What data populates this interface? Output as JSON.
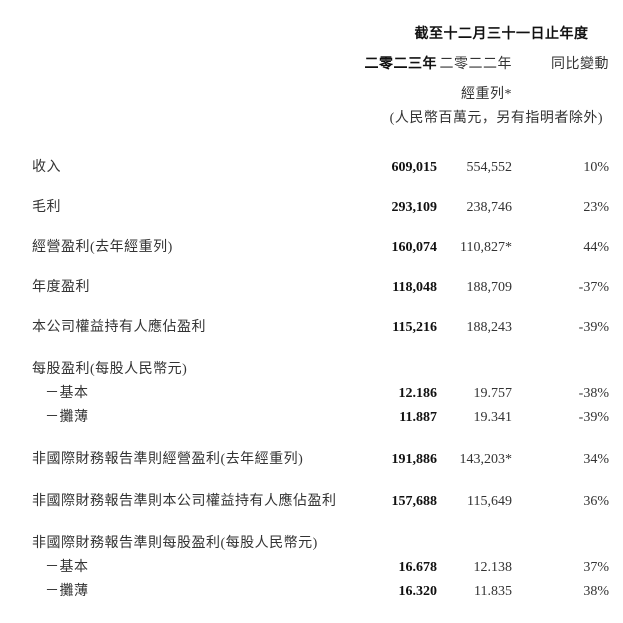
{
  "table": {
    "period_header": "截至十二月三十一日止年度",
    "columns": {
      "y2023": "二零二三年",
      "y2022": "二零二二年",
      "yoy": "同比變動"
    },
    "restated_note": "經重列*",
    "unit_note": "(人民幣百萬元，另有指明者除外)",
    "rows": [
      {
        "type": "item",
        "label": "收入",
        "v2023": "609,015",
        "v2022": "554,552",
        "yoy": "10%"
      },
      {
        "type": "item",
        "label": "毛利",
        "v2023": "293,109",
        "v2022": "238,746",
        "yoy": "23%"
      },
      {
        "type": "item",
        "label": "經營盈利(去年經重列)",
        "v2023": "160,074",
        "v2022": "110,827*",
        "yoy": "44%"
      },
      {
        "type": "item",
        "label": "年度盈利",
        "v2023": "118,048",
        "v2022": "188,709",
        "yoy": "-37%"
      },
      {
        "type": "item",
        "label": "本公司權益持有人應佔盈利",
        "v2023": "115,216",
        "v2022": "188,243",
        "yoy": "-39%"
      },
      {
        "type": "section",
        "label": "每股盈利(每股人民幣元)"
      },
      {
        "type": "sub",
        "label": "－基本",
        "v2023": "12.186",
        "v2022": "19.757",
        "yoy": "-38%"
      },
      {
        "type": "sub",
        "label": "－攤薄",
        "v2023": "11.887",
        "v2022": "19.341",
        "yoy": "-39%"
      },
      {
        "type": "item",
        "gap": "lg",
        "label": "非國際財務報告準則經營盈利(去年經重列)",
        "v2023": "191,886",
        "v2022": "143,203*",
        "yoy": "34%"
      },
      {
        "type": "item",
        "gap": "lg",
        "label": "非國際財務報告準則本公司權益持有人應佔盈利",
        "v2023": "157,688",
        "v2022": "115,649",
        "yoy": "36%"
      },
      {
        "type": "section",
        "label": "非國際財務報告準則每股盈利(每股人民幣元)"
      },
      {
        "type": "sub",
        "label": "－基本",
        "v2023": "16.678",
        "v2022": "12.138",
        "yoy": "37%"
      },
      {
        "type": "sub",
        "label": "－攤薄",
        "v2023": "16.320",
        "v2022": "11.835",
        "yoy": "38%"
      }
    ]
  }
}
